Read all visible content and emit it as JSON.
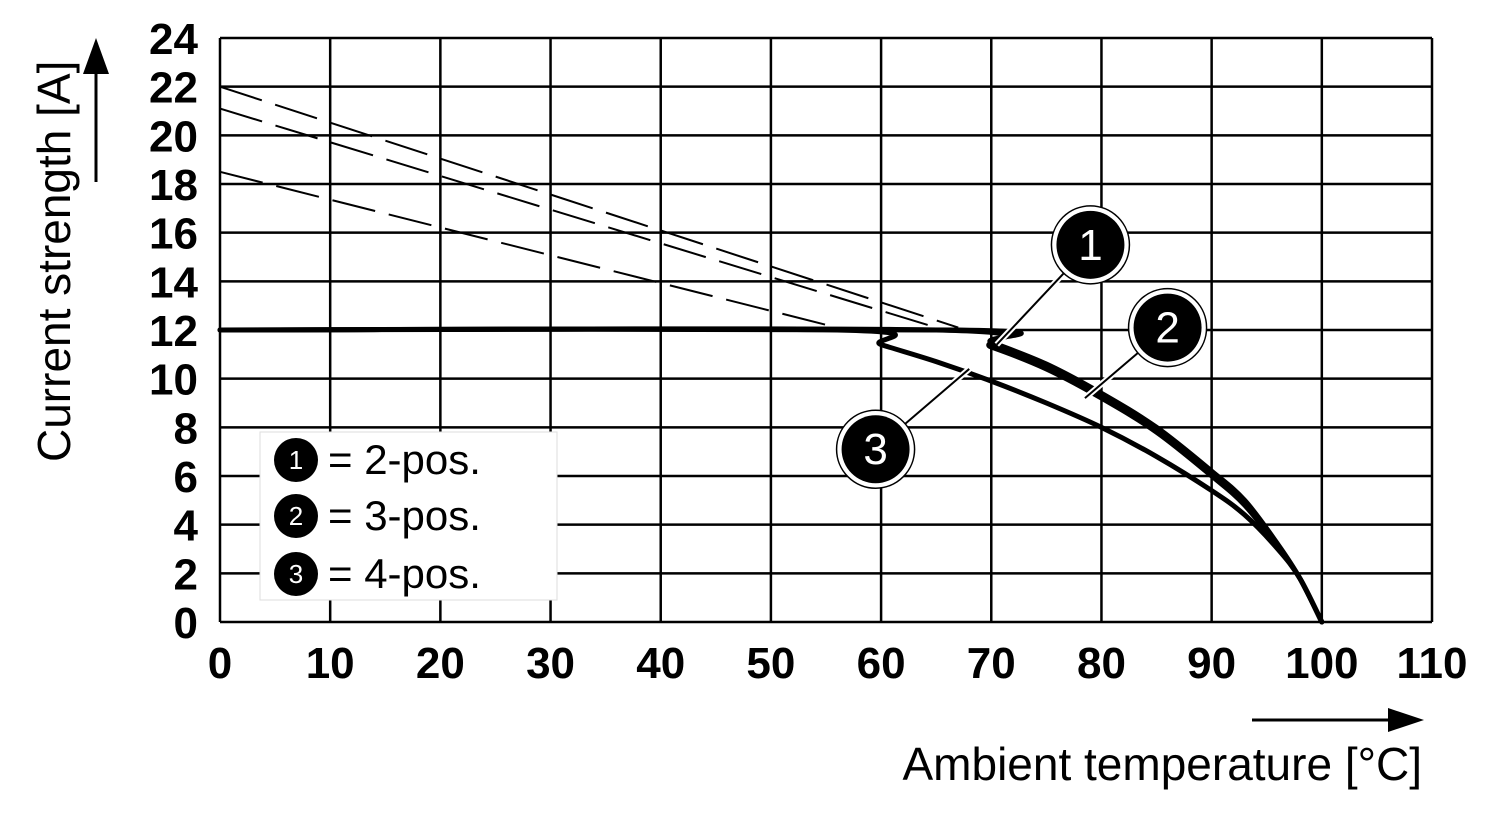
{
  "chart_data": {
    "type": "line",
    "xlabel": "Ambient temperature [°C]",
    "ylabel": "Current strength [A]",
    "xlim": [
      0,
      110
    ],
    "ylim": [
      0,
      24
    ],
    "x_ticks": [
      "0",
      "10",
      "20",
      "30",
      "40",
      "50",
      "60",
      "70",
      "80",
      "90",
      "100",
      "110"
    ],
    "y_ticks": [
      "0",
      "2",
      "4",
      "6",
      "8",
      "10",
      "12",
      "14",
      "16",
      "18",
      "20",
      "22",
      "24"
    ],
    "grid": true,
    "legend_position": "bottom-left",
    "colors": {
      "line": "#000000",
      "grid": "#000000",
      "callout_fill": "#000000",
      "callout_text": "#ffffff"
    },
    "series": [
      {
        "name": "1",
        "legend_label": "= 2-pos.",
        "values": [
          [
            0,
            12
          ],
          [
            67,
            12
          ],
          [
            70,
            11.5
          ],
          [
            75,
            10.6
          ],
          [
            80,
            9.4
          ],
          [
            85,
            8
          ],
          [
            90,
            6.2
          ],
          [
            93,
            5
          ],
          [
            96,
            3.2
          ],
          [
            98,
            1.8
          ],
          [
            100,
            0
          ]
        ],
        "derating_dashed": [
          [
            0,
            22
          ],
          [
            67,
            12.1
          ]
        ]
      },
      {
        "name": "2",
        "legend_label": "= 3-pos.",
        "values": [
          [
            0,
            12
          ],
          [
            65,
            12
          ],
          [
            70,
            11.3
          ],
          [
            75,
            10.4
          ],
          [
            80,
            9.2
          ],
          [
            85,
            7.8
          ],
          [
            90,
            6
          ],
          [
            93,
            4.8
          ],
          [
            96,
            3.1
          ],
          [
            98,
            1.8
          ],
          [
            100,
            0
          ]
        ],
        "derating_dashed": [
          [
            0,
            21.1
          ],
          [
            65,
            12.1
          ]
        ]
      },
      {
        "name": "3",
        "legend_label": "= 4-pos.",
        "values": [
          [
            0,
            12
          ],
          [
            56,
            12
          ],
          [
            60,
            11.4
          ],
          [
            65,
            10.7
          ],
          [
            70,
            9.9
          ],
          [
            75,
            9
          ],
          [
            80,
            8
          ],
          [
            85,
            6.8
          ],
          [
            90,
            5.4
          ],
          [
            93,
            4.4
          ],
          [
            96,
            3
          ],
          [
            98,
            1.8
          ],
          [
            100,
            0
          ]
        ],
        "derating_dashed": [
          [
            0,
            18.5
          ],
          [
            56,
            12.1
          ]
        ]
      }
    ],
    "callouts": [
      {
        "label": "1",
        "at": [
          79,
          15.5
        ],
        "points_to": [
          70.5,
          11.4
        ]
      },
      {
        "label": "2",
        "at": [
          86,
          12.1
        ],
        "points_to": [
          78.5,
          9.2
        ]
      },
      {
        "label": "3",
        "at": [
          59.5,
          7.1
        ],
        "points_to": [
          68,
          10.4
        ]
      }
    ]
  }
}
